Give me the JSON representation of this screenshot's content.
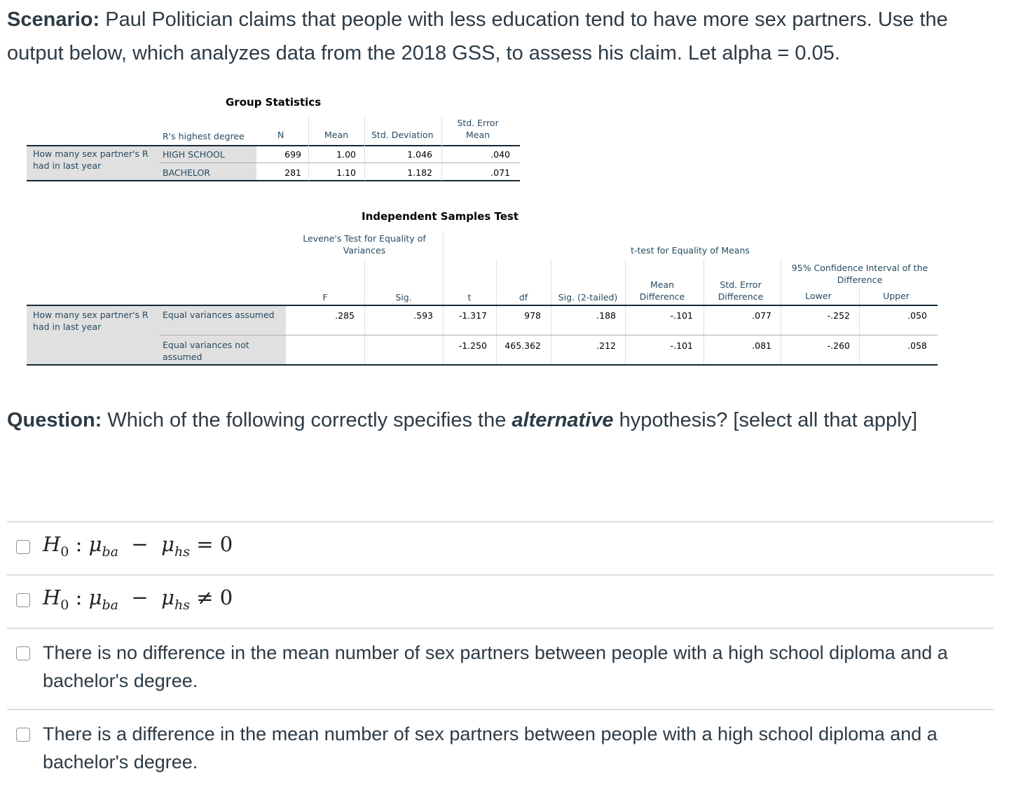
{
  "scenario": {
    "label": "Scenario:",
    "text": "Paul Politician claims that people with less education tend to have more sex partners. Use the output below, which analyzes data from the 2018 GSS, to assess his claim. Let alpha = 0.05."
  },
  "group_stats": {
    "title": "Group Statistics",
    "col_group": "R's highest degree",
    "col_n": "N",
    "col_mean": "Mean",
    "col_sd": "Std. Deviation",
    "col_se": "Std. Error Mean",
    "row_label": "How many sex partner's R had in last year",
    "rows": [
      {
        "group": "HIGH SCHOOL",
        "n": "699",
        "mean": "1.00",
        "sd": "1.046",
        "se": ".040"
      },
      {
        "group": "BACHELOR",
        "n": "281",
        "mean": "1.10",
        "sd": "1.182",
        "se": ".071"
      }
    ]
  },
  "ind_test": {
    "title": "Independent Samples Test",
    "levene_header": "Levene's Test for Equality of Variances",
    "ttest_header": "t-test for Equality of Means",
    "ci_header": "95% Confidence Interval of the Difference",
    "col_f": "F",
    "col_sig": "Sig.",
    "col_t": "t",
    "col_df": "df",
    "col_sig2": "Sig. (2-tailed)",
    "col_md": "Mean Difference",
    "col_sed": "Std. Error Difference",
    "col_lower": "Lower",
    "col_upper": "Upper",
    "row_label": "How many sex partner's R had in last year",
    "rows": [
      {
        "label": "Equal variances assumed",
        "f": ".285",
        "sig": ".593",
        "t": "-1.317",
        "df": "978",
        "sig2": ".188",
        "md": "-.101",
        "sed": ".077",
        "lower": "-.252",
        "upper": ".050"
      },
      {
        "label": "Equal variances not assumed",
        "f": "",
        "sig": "",
        "t": "-1.250",
        "df": "465.362",
        "sig2": ".212",
        "md": "-.101",
        "sed": ".081",
        "lower": "-.260",
        "upper": ".058"
      }
    ]
  },
  "question": {
    "label": "Question:",
    "text_before": "Which of the following correctly specifies the",
    "emphasis": "alternative",
    "text_after": "hypothesis? [select all that apply]"
  },
  "options": {
    "opt1": {
      "h": "H",
      "sub0": "0",
      "colon": ":",
      "mu": "μ",
      "ba": "ba",
      "minus": "−",
      "hs": "hs",
      "rel": "= 0"
    },
    "opt2": {
      "h": "H",
      "sub0": "0",
      "colon": ":",
      "mu": "μ",
      "ba": "ba",
      "minus": "−",
      "hs": "hs",
      "rel": "≠ 0"
    },
    "opt3": "There is no difference in the mean number of sex partners between people with a high school diploma and a bachelor's degree.",
    "opt4": "There is a difference in the mean number of sex partners between people with a high school diploma and a bachelor's degree."
  },
  "colors": {
    "text": "#2d3b45",
    "spss_label": "#264a60",
    "shade": "#e0e0e0"
  }
}
